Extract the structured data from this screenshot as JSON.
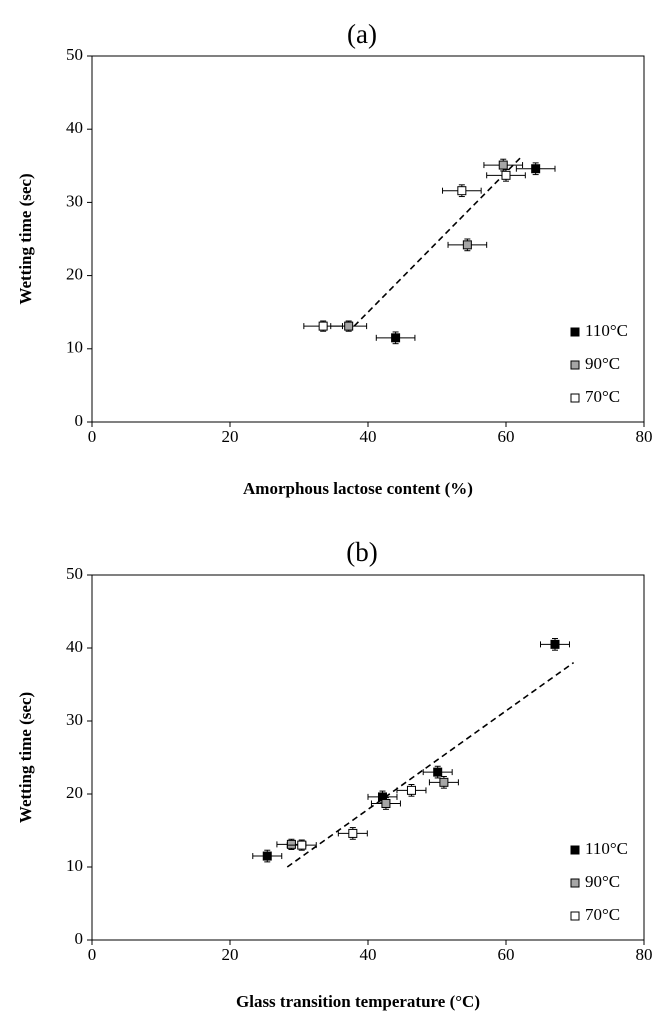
{
  "chart_data": [
    {
      "type": "scatter",
      "panel_label": "(a)",
      "xlabel": "Amorphous lactose content (%)",
      "ylabel": "Wetting time (sec)",
      "xlim": [
        0,
        80
      ],
      "ylim": [
        0,
        50
      ],
      "xticks": [
        0,
        20,
        40,
        60,
        80
      ],
      "yticks": [
        0,
        10,
        20,
        30,
        40,
        50
      ],
      "legend_position": "bottom-right",
      "series": [
        {
          "name": "110°C",
          "marker_color": "#000000",
          "points": [
            {
              "x": 44,
              "y": 11.5,
              "xerr": 2.8,
              "yerr": 0.8
            },
            {
              "x": 64.3,
              "y": 34.6,
              "xerr": 2.8,
              "yerr": 0.8
            }
          ]
        },
        {
          "name": "90°C",
          "marker_color": "#a6a6a6",
          "points": [
            {
              "x": 37.2,
              "y": 13.1,
              "xerr": 2.6,
              "yerr": 0.7
            },
            {
              "x": 54.4,
              "y": 24.2,
              "xerr": 2.8,
              "yerr": 0.8
            },
            {
              "x": 59.6,
              "y": 35.1,
              "xerr": 2.8,
              "yerr": 0.8
            }
          ]
        },
        {
          "name": "70°C",
          "marker_color": "#ffffff",
          "points": [
            {
              "x": 33.5,
              "y": 13.1,
              "xerr": 2.8,
              "yerr": 0.7
            },
            {
              "x": 53.6,
              "y": 31.6,
              "xerr": 2.8,
              "yerr": 0.8
            },
            {
              "x": 60,
              "y": 33.7,
              "xerr": 2.8,
              "yerr": 0.8
            }
          ]
        }
      ],
      "trendline": {
        "style": "dashed",
        "from": [
          38,
          13.1
        ],
        "to": [
          62.2,
          36.2
        ]
      }
    },
    {
      "type": "scatter",
      "panel_label": "(b)",
      "xlabel": "Glass transition temperature (°C)",
      "ylabel": "Wetting time (sec)",
      "xlim": [
        0,
        80
      ],
      "ylim": [
        0,
        50
      ],
      "xticks": [
        0,
        20,
        40,
        60,
        80
      ],
      "yticks": [
        0,
        10,
        20,
        30,
        40,
        50
      ],
      "legend_position": "bottom-right",
      "series": [
        {
          "name": "110°C",
          "marker_color": "#000000",
          "points": [
            {
              "x": 25.4,
              "y": 11.5,
              "xerr": 2.1,
              "yerr": 0.8
            },
            {
              "x": 42.1,
              "y": 19.6,
              "xerr": 2.1,
              "yerr": 0.8
            },
            {
              "x": 50.1,
              "y": 23,
              "xerr": 2.1,
              "yerr": 0.8
            },
            {
              "x": 67.1,
              "y": 40.5,
              "xerr": 2.1,
              "yerr": 0.8
            }
          ]
        },
        {
          "name": "90°C",
          "marker_color": "#a6a6a6",
          "points": [
            {
              "x": 28.9,
              "y": 13.1,
              "xerr": 2.1,
              "yerr": 0.7
            },
            {
              "x": 42.6,
              "y": 18.7,
              "xerr": 2.1,
              "yerr": 0.8
            },
            {
              "x": 51,
              "y": 21.6,
              "xerr": 2.1,
              "yerr": 0.8
            }
          ]
        },
        {
          "name": "70°C",
          "marker_color": "#ffffff",
          "points": [
            {
              "x": 30.4,
              "y": 13,
              "xerr": 2.1,
              "yerr": 0.7
            },
            {
              "x": 37.8,
              "y": 14.6,
              "xerr": 2.1,
              "yerr": 0.8
            },
            {
              "x": 46.3,
              "y": 20.5,
              "xerr": 2.1,
              "yerr": 0.8
            }
          ]
        }
      ],
      "trendline": {
        "style": "dashed",
        "from": [
          28.3,
          10
        ],
        "to": [
          69.8,
          38
        ]
      }
    }
  ]
}
